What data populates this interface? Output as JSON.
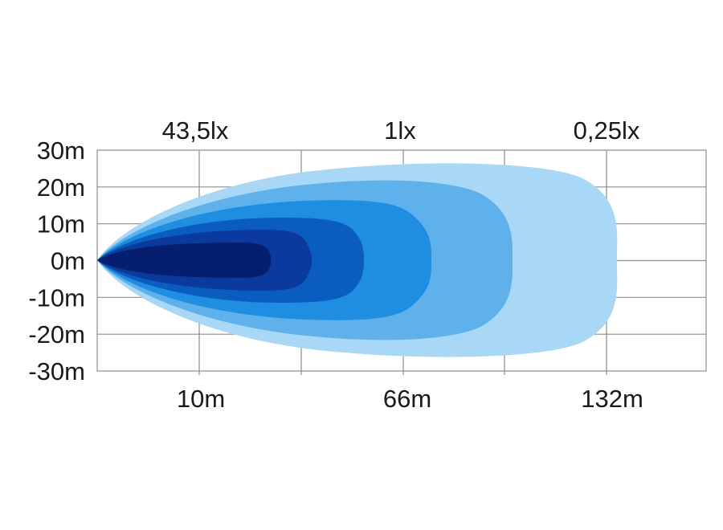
{
  "chart_data": {
    "type": "beam-pattern",
    "y_axis": {
      "ticks": [
        "30m",
        "20m",
        "10m",
        "0m",
        "-10m",
        "-20m",
        "-30m"
      ],
      "ylim": [
        -30,
        30
      ]
    },
    "top_labels": [
      "43,5lx",
      "1lx",
      "0,25lx"
    ],
    "bottom_labels": [
      "10m",
      "66m",
      "132m"
    ],
    "grid": true,
    "zones": [
      {
        "color": "#a8d8f5"
      },
      {
        "color": "#5fb1ec"
      },
      {
        "color": "#1f8de0"
      },
      {
        "color": "#0a5dbf"
      },
      {
        "color": "#0b3a9e"
      },
      {
        "color": "#061e70"
      }
    ]
  }
}
